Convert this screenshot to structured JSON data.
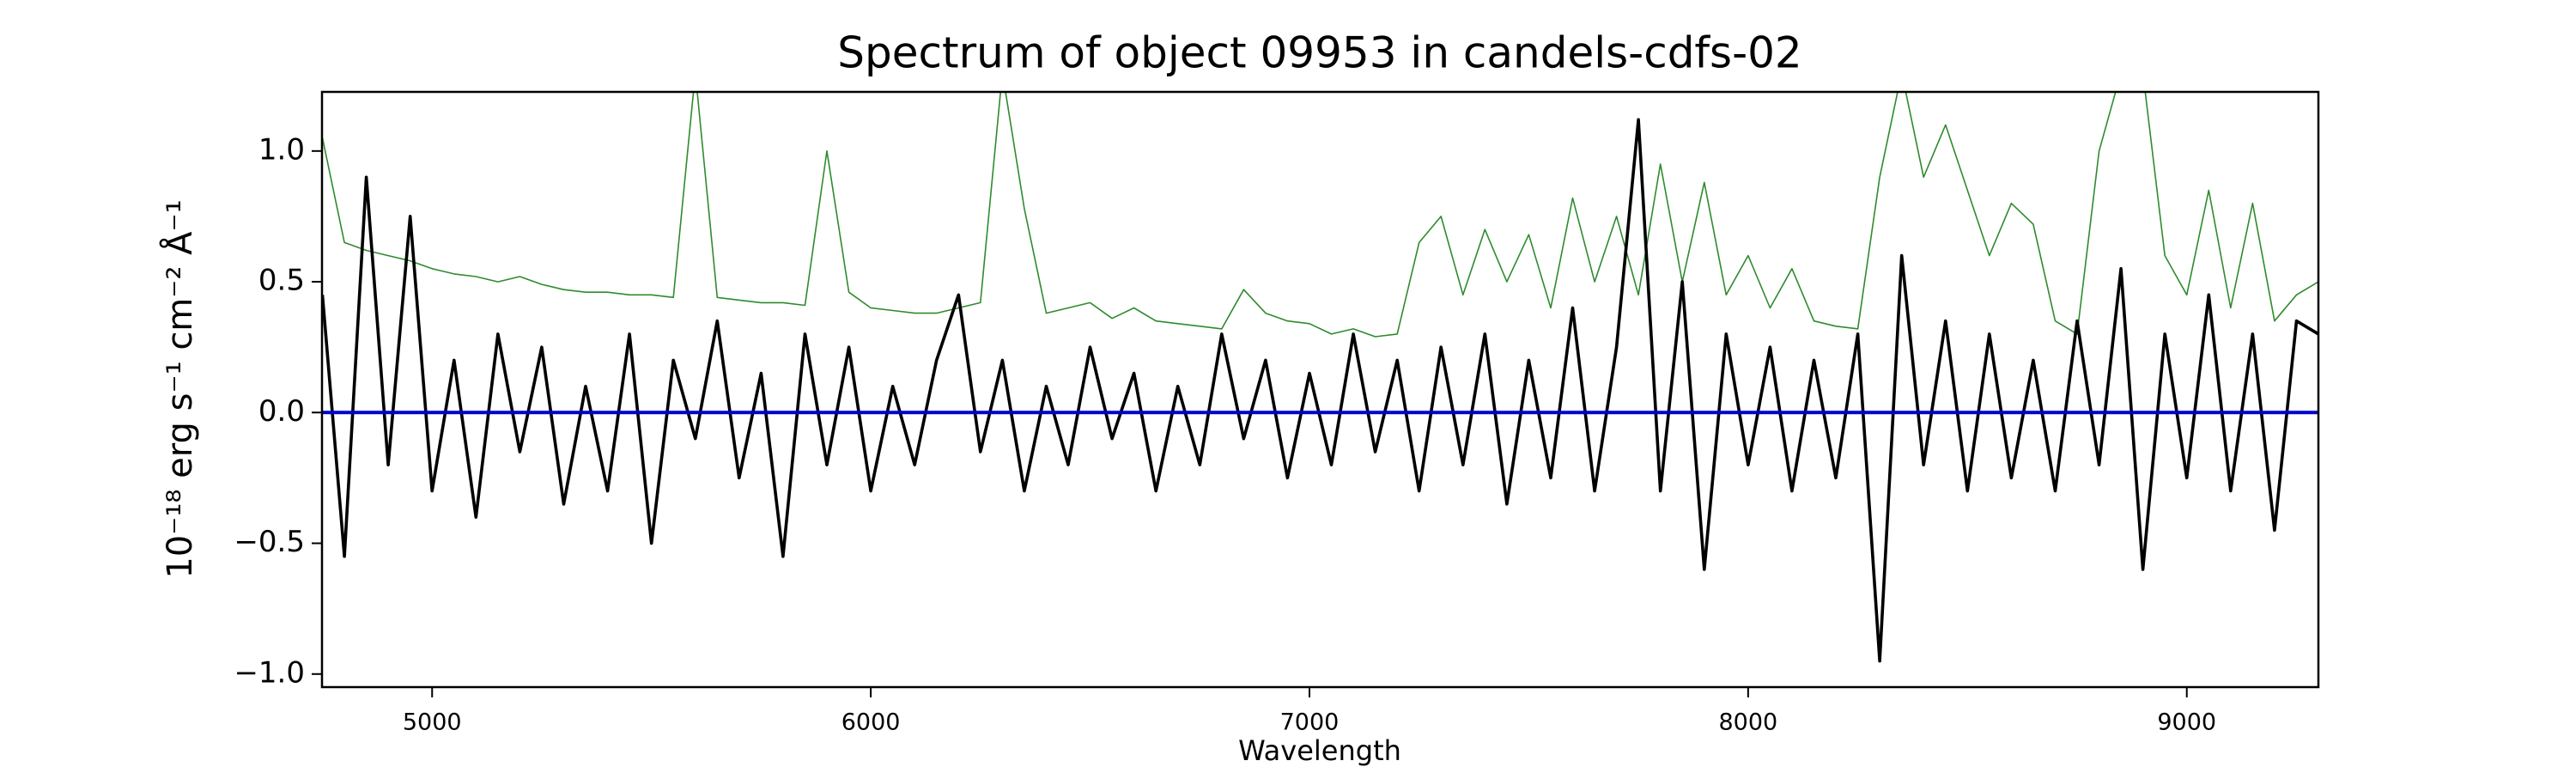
{
  "chart_data": {
    "type": "line",
    "title": "Spectrum of object 09953 in candels-cdfs-02",
    "xlabel": "Wavelength",
    "ylabel": "10⁻¹⁸ erg s⁻¹ cm⁻² Å⁻¹",
    "xlim": [
      4749,
      9300
    ],
    "ylim": [
      -1.05,
      1.226
    ],
    "xticks": [
      5000,
      6000,
      7000,
      8000,
      9000
    ],
    "yticks": [
      {
        "value": -1,
        "label": "−1.0"
      },
      {
        "value": -0.5,
        "label": "−0.5"
      },
      {
        "value": 0,
        "label": "0.0"
      },
      {
        "value": 0.5,
        "label": "0.5"
      },
      {
        "value": 1,
        "label": "1.0"
      }
    ],
    "hline": {
      "y": 0,
      "color": "#0000cc"
    },
    "x": [
      4750,
      4800,
      4850,
      4900,
      4950,
      5000,
      5050,
      5100,
      5150,
      5200,
      5250,
      5300,
      5350,
      5400,
      5450,
      5500,
      5550,
      5600,
      5650,
      5700,
      5750,
      5800,
      5850,
      5900,
      5950,
      6000,
      6050,
      6100,
      6150,
      6200,
      6250,
      6300,
      6350,
      6400,
      6450,
      6500,
      6550,
      6600,
      6650,
      6700,
      6750,
      6800,
      6850,
      6900,
      6950,
      7000,
      7050,
      7100,
      7150,
      7200,
      7250,
      7300,
      7350,
      7400,
      7450,
      7500,
      7550,
      7600,
      7650,
      7700,
      7750,
      7800,
      7850,
      7900,
      7950,
      8000,
      8050,
      8100,
      8150,
      8200,
      8250,
      8300,
      8350,
      8400,
      8450,
      8500,
      8550,
      8600,
      8650,
      8700,
      8750,
      8800,
      8850,
      8900,
      8950,
      9000,
      9050,
      9100,
      9150,
      9200,
      9250,
      9300
    ],
    "series": [
      {
        "color": "#2e8b2e",
        "width": 1.6,
        "values": [
          1.05,
          0.65,
          0.62,
          0.6,
          0.58,
          0.55,
          0.53,
          0.52,
          0.5,
          0.52,
          0.49,
          0.47,
          0.46,
          0.46,
          0.45,
          0.45,
          0.44,
          1.3,
          0.44,
          0.43,
          0.42,
          0.42,
          0.41,
          1.0,
          0.46,
          0.4,
          0.39,
          0.38,
          0.38,
          0.4,
          0.42,
          1.3,
          0.78,
          0.38,
          0.4,
          0.42,
          0.36,
          0.4,
          0.35,
          0.34,
          0.33,
          0.32,
          0.47,
          0.38,
          0.35,
          0.34,
          0.3,
          0.32,
          0.29,
          0.3,
          0.65,
          0.75,
          0.45,
          0.7,
          0.5,
          0.68,
          0.4,
          0.82,
          0.5,
          0.75,
          0.45,
          0.95,
          0.5,
          0.88,
          0.45,
          0.6,
          0.4,
          0.55,
          0.35,
          0.33,
          0.32,
          0.9,
          1.3,
          0.9,
          1.1,
          0.85,
          0.6,
          0.8,
          0.72,
          0.35,
          0.3,
          1.0,
          1.3,
          1.3,
          0.6,
          0.45,
          0.85,
          0.4,
          0.8,
          0.35,
          0.45,
          0.5
        ]
      },
      {
        "color": "#000000",
        "width": 3.6,
        "values": [
          0.45,
          -0.55,
          0.9,
          -0.2,
          0.75,
          -0.3,
          0.2,
          -0.4,
          0.3,
          -0.15,
          0.25,
          -0.35,
          0.1,
          -0.3,
          0.3,
          -0.5,
          0.2,
          -0.1,
          0.35,
          -0.25,
          0.15,
          -0.55,
          0.3,
          -0.2,
          0.25,
          -0.3,
          0.1,
          -0.2,
          0.2,
          0.45,
          -0.15,
          0.2,
          -0.3,
          0.1,
          -0.2,
          0.25,
          -0.1,
          0.15,
          -0.3,
          0.1,
          -0.2,
          0.3,
          -0.1,
          0.2,
          -0.25,
          0.15,
          -0.2,
          0.3,
          -0.15,
          0.2,
          -0.3,
          0.25,
          -0.2,
          0.3,
          -0.35,
          0.2,
          -0.25,
          0.4,
          -0.3,
          0.25,
          1.12,
          -0.3,
          0.5,
          -0.6,
          0.3,
          -0.2,
          0.25,
          -0.3,
          0.2,
          -0.25,
          0.3,
          -0.95,
          0.6,
          -0.2,
          0.35,
          -0.3,
          0.3,
          -0.25,
          0.2,
          -0.3,
          0.35,
          -0.2,
          0.55,
          -0.6,
          0.3,
          -0.25,
          0.45,
          -0.3,
          0.3,
          -0.45,
          0.35,
          0.3
        ]
      }
    ]
  }
}
